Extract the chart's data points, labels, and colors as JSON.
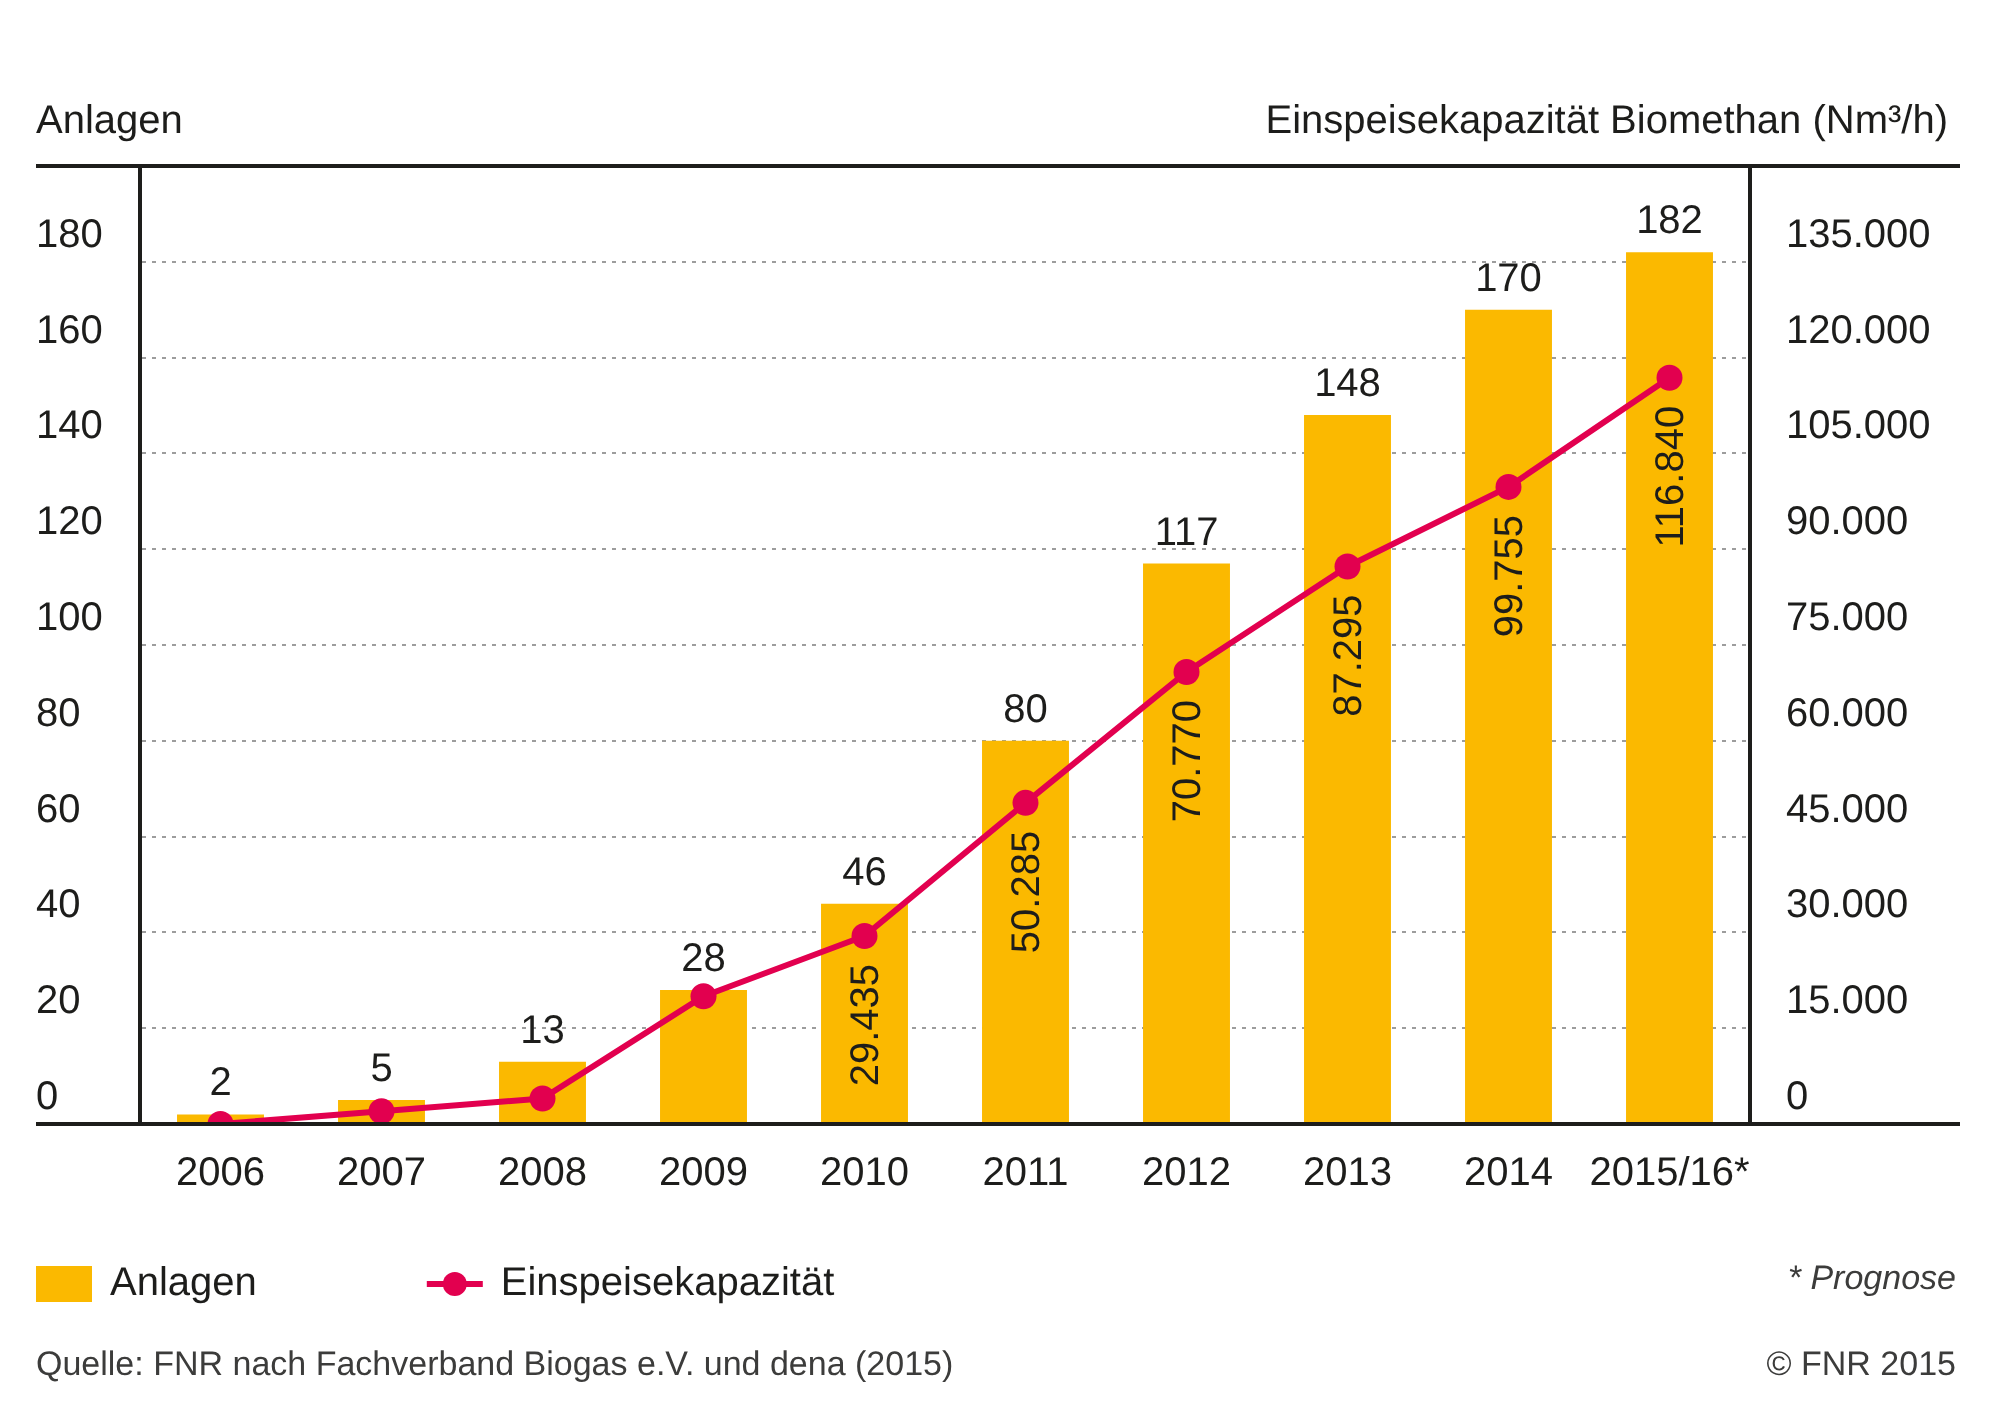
{
  "chart_data": {
    "type": "bar",
    "ylabel": "Anlagen",
    "y2label": "Einspeisekapazität Biomethan (Nm³/h)",
    "categories": [
      "2006",
      "2007",
      "2008",
      "2009",
      "2010",
      "2011",
      "2012",
      "2013",
      "2014",
      "2015/16*"
    ],
    "series": [
      {
        "name": "Anlagen",
        "color": "#fbb900",
        "values": [
          2,
          5,
          13,
          28,
          46,
          80,
          117,
          148,
          170,
          182
        ],
        "value_labels": [
          "2",
          "5",
          "13",
          "28",
          "46",
          "80",
          "117",
          "148",
          "170",
          "182"
        ]
      },
      {
        "name": "Einspeisekapazität",
        "type": "line",
        "axis": "y2",
        "color": "#e2004f",
        "values": [
          0,
          2000,
          4000,
          20000,
          29435,
          50285,
          70770,
          87295,
          99755,
          116840
        ],
        "value_labels": [
          null,
          null,
          null,
          null,
          "29.435",
          "50.285",
          "70.770",
          "87.295",
          "99.755",
          "116.840"
        ]
      }
    ],
    "ylim": [
      0,
      200
    ],
    "yticks": [
      0,
      20,
      40,
      60,
      80,
      100,
      120,
      140,
      160,
      180
    ],
    "y2lim": [
      0,
      150000
    ],
    "y2ticks": [
      0,
      {
        "value": 15000,
        "label": "15.000"
      },
      {
        "value": 30000,
        "label": "30.000"
      },
      {
        "value": 45000,
        "label": "45.000"
      },
      {
        "value": 60000,
        "label": "60.000"
      },
      {
        "value": 75000,
        "label": "75.000"
      },
      {
        "value": 90000,
        "label": "90.000"
      },
      {
        "value": 105000,
        "label": "105.000"
      },
      {
        "value": 120000,
        "label": "120.000"
      },
      {
        "value": 135000,
        "label": "135.000"
      }
    ],
    "grid": "y",
    "legend": "bottom",
    "marker": "circle",
    "line_style": "solid",
    "annotations": [
      "* Prognose",
      "Quelle: FNR nach Fachverband Biogas e.V. und dena (2015)",
      "© FNR 2015"
    ]
  }
}
